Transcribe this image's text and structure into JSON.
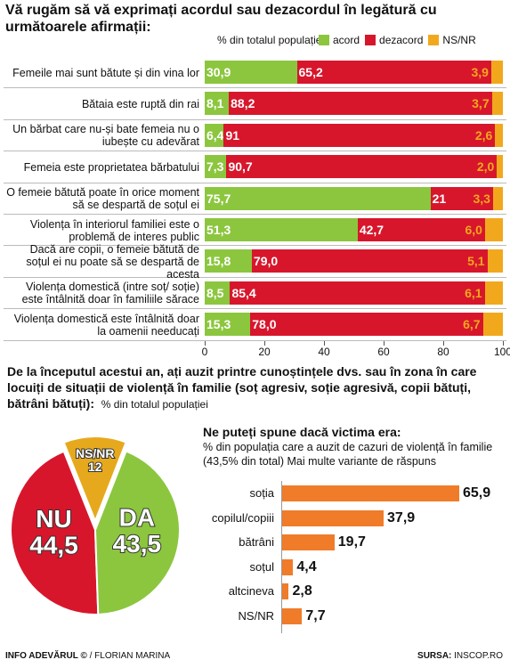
{
  "chart_data": [
    {
      "type": "stacked-bar-horizontal",
      "title": "Vă rugăm să vă exprimați acordul sau dezacordul în legătură cu următoarele afirmații:",
      "subtitle": "% din totalul populației",
      "categories": [
        "Femeile mai sunt bătute și din vina lor",
        "Bătaia este ruptă din rai",
        "Un bărbat care nu-și bate femeia nu o iubește cu adevărat",
        "Femeia este proprietatea bărbatului",
        "O femeie bătută poate în orice moment să se despartă de soțul ei",
        "Violența în interiorul familiei este o problemă de interes public",
        "Dacă are copii, o femeie bătută de soțul ei nu poate să se despartă de acesta",
        "Violența domestică (intre soț/ soție) este întâlnită doar în familiile sărace",
        "Violența domestică este întâlnită doar la oamenii needucați"
      ],
      "series": [
        {
          "name": "acord",
          "color": "#8cc63f",
          "values": [
            30.9,
            8.1,
            6.4,
            7.3,
            75.7,
            51.3,
            15.8,
            8.5,
            15.3
          ],
          "value_labels": [
            "30,9",
            "8,1",
            "6,4",
            "7,3",
            "75,7",
            "51,3",
            "15,8",
            "8,5",
            "15,3"
          ]
        },
        {
          "name": "dezacord",
          "color": "#d7162c",
          "values": [
            65.2,
            88.2,
            91,
            90.7,
            21,
            42.7,
            79.0,
            85.4,
            78.0
          ],
          "value_labels": [
            "65,2",
            "88,2",
            "91",
            "90,7",
            "21",
            "42,7",
            "79,0",
            "85,4",
            "78,0"
          ]
        },
        {
          "name": "NS/NR",
          "color": "#f2a81d",
          "values": [
            3.9,
            3.7,
            2.6,
            2.0,
            3.3,
            6.0,
            5.1,
            6.1,
            6.7
          ],
          "value_labels": [
            "3,9",
            "3,7",
            "2,6",
            "2,0",
            "3,3",
            "6,0",
            "5,1",
            "6,1",
            "6,7"
          ]
        }
      ],
      "xlim": [
        0,
        100
      ],
      "xticks": [
        0,
        20,
        40,
        60,
        80,
        100
      ]
    },
    {
      "type": "pie",
      "title": "De la începutul acestui an, ați auzit printre cunoștințele dvs. sau în zona în care locuiți de situații de violență în familie (soț agresiv, soție agresivă, copii bătuți, bătrâni bătuți):",
      "subtitle": "% din totalul populației",
      "categories": [
        "NU",
        "NS/NR",
        "DA"
      ],
      "values": [
        44.5,
        12,
        43.5
      ],
      "value_labels": [
        "44,5",
        "12",
        "43,5"
      ],
      "colors": [
        "#d7162c",
        "#e6a91e",
        "#8cc63f"
      ]
    },
    {
      "type": "bar-horizontal",
      "title": "Ne puteți spune dacă victima era:",
      "subtitle": "% din populația care a auzit de cazuri de violență în familie (43,5% din total) Mai multe variante de răspuns",
      "categories": [
        "soția",
        "copilul/copiii",
        "bătrâni",
        "soțul",
        "altcineva",
        "NS/NR"
      ],
      "values": [
        65.9,
        37.9,
        19.7,
        4.4,
        2.8,
        7.7
      ],
      "value_labels": [
        "65,9",
        "37,9",
        "19,7",
        "4,4",
        "2,8",
        "7,7"
      ],
      "color": "#f07c2a"
    }
  ],
  "footer": {
    "credit": "INFO ADEVĂRUL ©",
    "author": "/ FLORIAN MARINA",
    "source_label": "SURSA:",
    "source": "INSCOP.RO"
  }
}
